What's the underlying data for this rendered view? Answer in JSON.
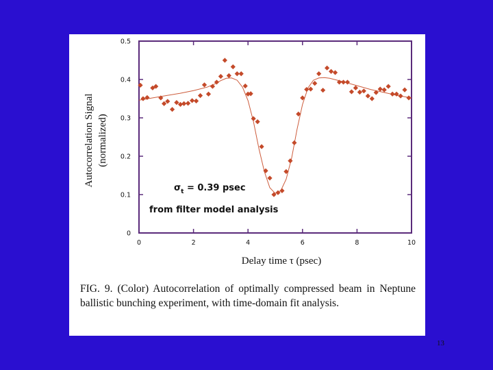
{
  "slide": {
    "page_number": "13",
    "caption": "FIG. 9. (Color) Autocorrelation of optimally compressed beam in Neptune ballistic bunching experiment, with time-domain fit analysis."
  },
  "colors": {
    "background": "#2a0fd0",
    "marker": "#c44a2a",
    "fit_line": "#cc5a3a",
    "frame": "#5a2a7a"
  },
  "chart_data": {
    "type": "scatter",
    "xlabel": "Delay time τ (psec)",
    "ylabel_line1": "Autocorrelation Signal",
    "ylabel_line2": "(normalized)",
    "xlim": [
      0,
      10
    ],
    "ylim": [
      0,
      0.5
    ],
    "x_ticks": [
      0,
      2,
      4,
      6,
      8,
      10
    ],
    "x_tick_labels": [
      "0",
      "2",
      "4",
      "6",
      "8",
      "10"
    ],
    "y_ticks": [
      0,
      0.1,
      0.2,
      0.3,
      0.4,
      0.5
    ],
    "y_tick_labels": [
      "0",
      "0.1",
      "0.2",
      "0.3",
      "0.4",
      "0.5"
    ],
    "annotation_sigma": "σ",
    "annotation_sub": "t",
    "annotation_rest": " = 0.39 psec",
    "annotation_line2": "from filter model analysis",
    "series": [
      {
        "name": "data",
        "points": [
          [
            0.05,
            0.385
          ],
          [
            0.15,
            0.35
          ],
          [
            0.3,
            0.353
          ],
          [
            0.5,
            0.378
          ],
          [
            0.62,
            0.382
          ],
          [
            0.8,
            0.352
          ],
          [
            0.92,
            0.337
          ],
          [
            1.05,
            0.343
          ],
          [
            1.22,
            0.322
          ],
          [
            1.38,
            0.34
          ],
          [
            1.52,
            0.335
          ],
          [
            1.65,
            0.337
          ],
          [
            1.8,
            0.338
          ],
          [
            1.95,
            0.345
          ],
          [
            2.1,
            0.344
          ],
          [
            2.25,
            0.358
          ],
          [
            2.4,
            0.386
          ],
          [
            2.55,
            0.362
          ],
          [
            2.7,
            0.382
          ],
          [
            2.85,
            0.393
          ],
          [
            3.0,
            0.408
          ],
          [
            3.15,
            0.45
          ],
          [
            3.3,
            0.41
          ],
          [
            3.45,
            0.433
          ],
          [
            3.6,
            0.415
          ],
          [
            3.75,
            0.415
          ],
          [
            3.9,
            0.383
          ],
          [
            4.0,
            0.362
          ],
          [
            4.1,
            0.363
          ],
          [
            4.2,
            0.298
          ],
          [
            4.35,
            0.29
          ],
          [
            4.5,
            0.225
          ],
          [
            4.65,
            0.162
          ],
          [
            4.8,
            0.143
          ],
          [
            4.95,
            0.1
          ],
          [
            5.1,
            0.105
          ],
          [
            5.25,
            0.11
          ],
          [
            5.4,
            0.16
          ],
          [
            5.55,
            0.188
          ],
          [
            5.7,
            0.235
          ],
          [
            5.85,
            0.31
          ],
          [
            6.0,
            0.352
          ],
          [
            6.15,
            0.374
          ],
          [
            6.3,
            0.375
          ],
          [
            6.45,
            0.39
          ],
          [
            6.6,
            0.415
          ],
          [
            6.75,
            0.372
          ],
          [
            6.9,
            0.43
          ],
          [
            7.05,
            0.421
          ],
          [
            7.2,
            0.418
          ],
          [
            7.35,
            0.393
          ],
          [
            7.5,
            0.393
          ],
          [
            7.65,
            0.393
          ],
          [
            7.8,
            0.368
          ],
          [
            7.95,
            0.378
          ],
          [
            8.1,
            0.367
          ],
          [
            8.25,
            0.37
          ],
          [
            8.4,
            0.357
          ],
          [
            8.55,
            0.35
          ],
          [
            8.7,
            0.366
          ],
          [
            8.85,
            0.375
          ],
          [
            9.0,
            0.373
          ],
          [
            9.15,
            0.382
          ],
          [
            9.3,
            0.362
          ],
          [
            9.45,
            0.362
          ],
          [
            9.6,
            0.357
          ],
          [
            9.75,
            0.373
          ],
          [
            9.9,
            0.352
          ]
        ]
      },
      {
        "name": "fit",
        "points": [
          [
            0.0,
            0.346
          ],
          [
            0.5,
            0.352
          ],
          [
            1.0,
            0.358
          ],
          [
            1.5,
            0.364
          ],
          [
            2.0,
            0.371
          ],
          [
            2.5,
            0.38
          ],
          [
            2.8,
            0.389
          ],
          [
            3.0,
            0.397
          ],
          [
            3.2,
            0.403
          ],
          [
            3.4,
            0.404
          ],
          [
            3.6,
            0.398
          ],
          [
            3.8,
            0.38
          ],
          [
            4.0,
            0.345
          ],
          [
            4.2,
            0.29
          ],
          [
            4.4,
            0.22
          ],
          [
            4.6,
            0.16
          ],
          [
            4.8,
            0.118
          ],
          [
            5.0,
            0.103
          ],
          [
            5.2,
            0.11
          ],
          [
            5.4,
            0.14
          ],
          [
            5.6,
            0.195
          ],
          [
            5.8,
            0.27
          ],
          [
            6.0,
            0.335
          ],
          [
            6.2,
            0.378
          ],
          [
            6.4,
            0.398
          ],
          [
            6.6,
            0.404
          ],
          [
            6.8,
            0.405
          ],
          [
            7.0,
            0.403
          ],
          [
            7.5,
            0.394
          ],
          [
            8.0,
            0.384
          ],
          [
            8.5,
            0.374
          ],
          [
            9.0,
            0.366
          ],
          [
            9.5,
            0.358
          ],
          [
            10.0,
            0.352
          ]
        ]
      }
    ]
  }
}
